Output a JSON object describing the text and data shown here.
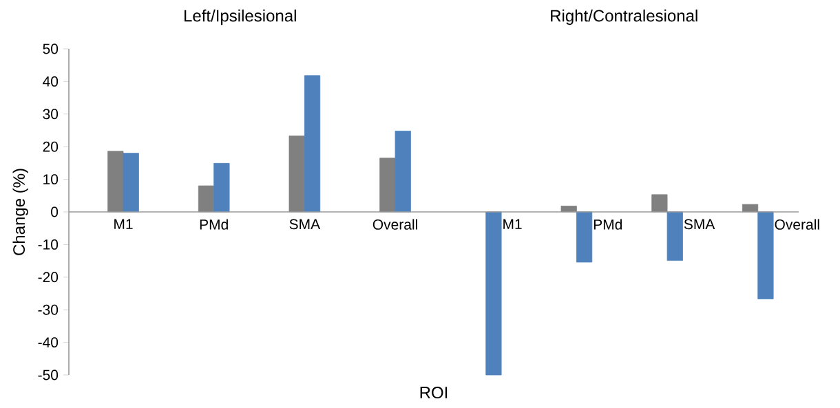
{
  "chart_data": {
    "type": "bar",
    "xlabel": "ROI",
    "ylabel": "Change (%)",
    "annotations": [
      "Left/Ipsilesional",
      "Right/Contralesional"
    ],
    "categories": [
      "M1",
      "PMd",
      "SMA",
      "Overall",
      "M1",
      "PMd",
      "SMA",
      "Overall"
    ],
    "series": [
      {
        "color": "#808080",
        "values": [
          18.6,
          8,
          23.3,
          16.5,
          null,
          1.8,
          5.3,
          2.3
        ]
      },
      {
        "color": "#4f81bd",
        "values": [
          18,
          14.9,
          41.8,
          24.8,
          -50,
          -15.4,
          -14.9,
          -26.7
        ]
      }
    ],
    "ylim": [
      -50,
      50
    ],
    "yticks": [
      -50,
      -40,
      -30,
      -20,
      -10,
      0,
      10,
      20,
      30,
      40,
      50
    ]
  }
}
